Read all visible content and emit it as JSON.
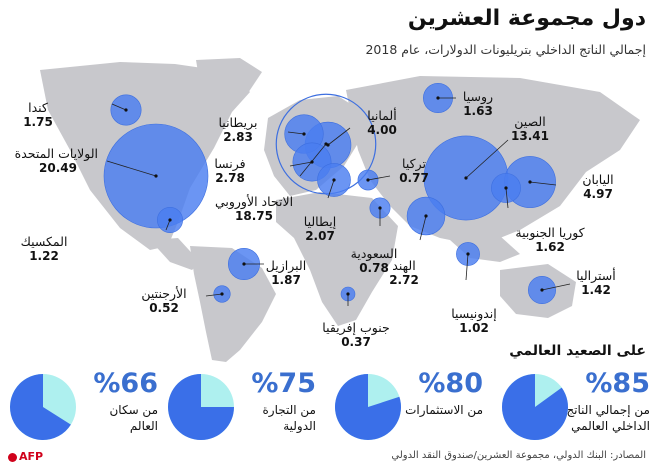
{
  "title": "دول مجموعة العشرين",
  "subtitle": "إجمالي الناتج الداخلي بتريليونات الدولارات، عام 2018",
  "colors": {
    "bubble": "#4a7ef0",
    "bubble_stroke": "#3d6fe0",
    "land": "#c8c8cc",
    "ocean": "#ffffff",
    "pie_fill": "#3a6fe8",
    "pie_rest": "#aef0ef"
  },
  "chart_data": [
    {
      "type": "bubble-map",
      "title": "دول مجموعة العشرين",
      "subtitle": "إجمالي الناتج الداخلي بتريليونات الدولارات، عام 2018",
      "points": [
        {
          "name": "الولايات المتحدة",
          "value": 20.49,
          "value_label": "20.49"
        },
        {
          "name": "الصين",
          "value": 13.41,
          "value_label": "13.41"
        },
        {
          "name": "الاتحاد الأوروبي",
          "value": 18.75,
          "value_label": "18.75"
        },
        {
          "name": "اليابان",
          "value": 4.97,
          "value_label": "4.97"
        },
        {
          "name": "ألمانيا",
          "value": 4.0,
          "value_label": "4.00"
        },
        {
          "name": "بريطانيا",
          "value": 2.83,
          "value_label": "2.83"
        },
        {
          "name": "فرنسا",
          "value": 2.78,
          "value_label": "2.78"
        },
        {
          "name": "الهند",
          "value": 2.72,
          "value_label": "2.72"
        },
        {
          "name": "إيطاليا",
          "value": 2.07,
          "value_label": "2.07"
        },
        {
          "name": "البرازيل",
          "value": 1.87,
          "value_label": "1.87"
        },
        {
          "name": "كندا",
          "value": 1.75,
          "value_label": "1.75"
        },
        {
          "name": "روسيا",
          "value": 1.63,
          "value_label": "1.63"
        },
        {
          "name": "كوريا الجنوبية",
          "value": 1.62,
          "value_label": "1.62"
        },
        {
          "name": "أستراليا",
          "value": 1.42,
          "value_label": "1.42"
        },
        {
          "name": "المكسيك",
          "value": 1.22,
          "value_label": "1.22"
        },
        {
          "name": "إندونيسيا",
          "value": 1.02,
          "value_label": "1.02"
        },
        {
          "name": "السعودية",
          "value": 0.78,
          "value_label": "0.78"
        },
        {
          "name": "تركيا",
          "value": 0.77,
          "value_label": "0.77"
        },
        {
          "name": "الأرجنتين",
          "value": 0.52,
          "value_label": "0.52"
        },
        {
          "name": "جنوب إفريقيا",
          "value": 0.37,
          "value_label": "0.37"
        }
      ]
    },
    {
      "type": "pie",
      "title": "على الصعيد العالمي",
      "slices": [
        {
          "label": "%85",
          "description": "من إجمالي الناتج\nالداخلي العالمي",
          "value": 85
        },
        {
          "label": "%80",
          "description": "من الاستثمارات",
          "value": 80
        },
        {
          "label": "%75",
          "description": "من التجارة\nالدولية",
          "value": 75
        },
        {
          "label": "%66",
          "description": "من سكان\nالعالم",
          "value": 66
        }
      ]
    }
  ],
  "global": {
    "title": "على الصعيد العالمي",
    "stats": [
      {
        "pct": "%85",
        "desc": "من إجمالي الناتج\nالداخلي العالمي"
      },
      {
        "pct": "%80",
        "desc": "من الاستثمارات"
      },
      {
        "pct": "%75",
        "desc": "من التجارة\nالدولية"
      },
      {
        "pct": "%66",
        "desc": "من سكان\nالعالم"
      }
    ]
  },
  "source": "المصادر: البنك الدولي، مجموعة العشرين/صندوق النقد الدولي",
  "logo": "AFP"
}
